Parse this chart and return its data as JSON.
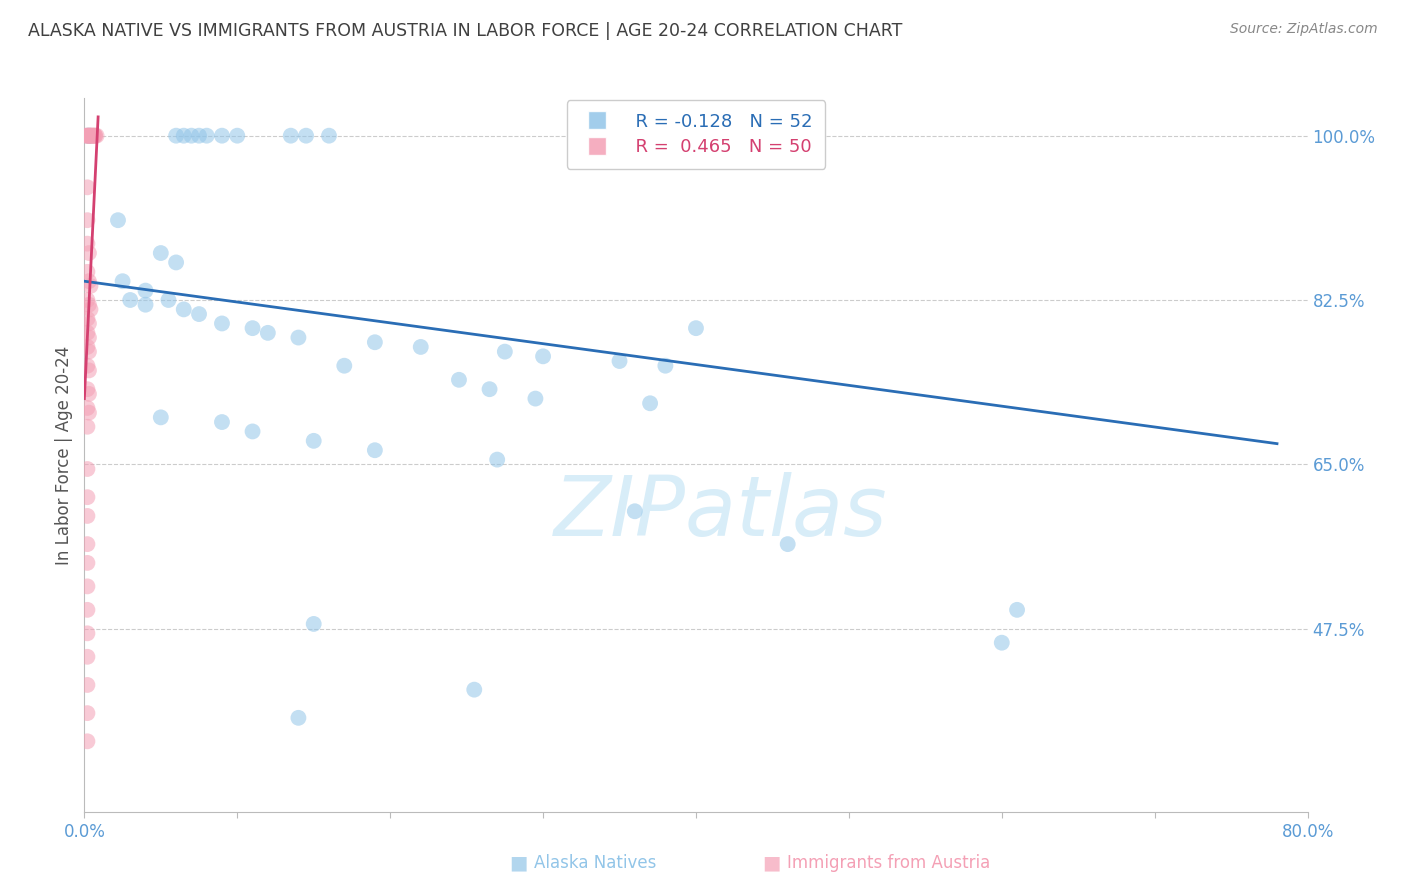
{
  "title": "ALASKA NATIVE VS IMMIGRANTS FROM AUSTRIA IN LABOR FORCE | AGE 20-24 CORRELATION CHART",
  "source": "Source: ZipAtlas.com",
  "ylabel": "In Labor Force | Age 20-24",
  "xmin": 0.0,
  "xmax": 0.8,
  "ymin": 0.28,
  "ymax": 1.04,
  "ytick_vals": [
    0.475,
    0.65,
    0.825,
    1.0
  ],
  "ytick_labels": [
    "47.5%",
    "65.0%",
    "82.5%",
    "100.0%"
  ],
  "xtick_vals": [
    0.0,
    0.1,
    0.2,
    0.3,
    0.4,
    0.5,
    0.6,
    0.7,
    0.8
  ],
  "blue_scatter": [
    [
      0.002,
      1.0
    ],
    [
      0.003,
      1.0
    ],
    [
      0.004,
      1.0
    ],
    [
      0.06,
      1.0
    ],
    [
      0.065,
      1.0
    ],
    [
      0.07,
      1.0
    ],
    [
      0.075,
      1.0
    ],
    [
      0.08,
      1.0
    ],
    [
      0.09,
      1.0
    ],
    [
      0.1,
      1.0
    ],
    [
      0.135,
      1.0
    ],
    [
      0.145,
      1.0
    ],
    [
      0.16,
      1.0
    ],
    [
      0.022,
      0.91
    ],
    [
      0.05,
      0.875
    ],
    [
      0.06,
      0.865
    ],
    [
      0.025,
      0.845
    ],
    [
      0.04,
      0.835
    ],
    [
      0.055,
      0.825
    ],
    [
      0.065,
      0.815
    ],
    [
      0.075,
      0.81
    ],
    [
      0.09,
      0.8
    ],
    [
      0.11,
      0.795
    ],
    [
      0.03,
      0.825
    ],
    [
      0.04,
      0.82
    ],
    [
      0.12,
      0.79
    ],
    [
      0.14,
      0.785
    ],
    [
      0.19,
      0.78
    ],
    [
      0.22,
      0.775
    ],
    [
      0.275,
      0.77
    ],
    [
      0.3,
      0.765
    ],
    [
      0.35,
      0.76
    ],
    [
      0.38,
      0.755
    ],
    [
      0.4,
      0.795
    ],
    [
      0.17,
      0.755
    ],
    [
      0.245,
      0.74
    ],
    [
      0.265,
      0.73
    ],
    [
      0.295,
      0.72
    ],
    [
      0.37,
      0.715
    ],
    [
      0.05,
      0.7
    ],
    [
      0.09,
      0.695
    ],
    [
      0.11,
      0.685
    ],
    [
      0.15,
      0.675
    ],
    [
      0.19,
      0.665
    ],
    [
      0.27,
      0.655
    ],
    [
      0.36,
      0.6
    ],
    [
      0.46,
      0.565
    ],
    [
      0.15,
      0.48
    ],
    [
      0.61,
      0.495
    ],
    [
      0.255,
      0.41
    ],
    [
      0.14,
      0.38
    ],
    [
      0.6,
      0.46
    ]
  ],
  "pink_scatter": [
    [
      0.001,
      1.0
    ],
    [
      0.002,
      1.0
    ],
    [
      0.002,
      1.0
    ],
    [
      0.003,
      1.0
    ],
    [
      0.003,
      1.0
    ],
    [
      0.004,
      1.0
    ],
    [
      0.004,
      1.0
    ],
    [
      0.005,
      1.0
    ],
    [
      0.005,
      1.0
    ],
    [
      0.006,
      1.0
    ],
    [
      0.006,
      1.0
    ],
    [
      0.007,
      1.0
    ],
    [
      0.007,
      1.0
    ],
    [
      0.008,
      1.0
    ],
    [
      0.002,
      0.945
    ],
    [
      0.002,
      0.91
    ],
    [
      0.002,
      0.885
    ],
    [
      0.003,
      0.875
    ],
    [
      0.002,
      0.855
    ],
    [
      0.003,
      0.845
    ],
    [
      0.004,
      0.84
    ],
    [
      0.002,
      0.825
    ],
    [
      0.003,
      0.82
    ],
    [
      0.004,
      0.815
    ],
    [
      0.002,
      0.805
    ],
    [
      0.003,
      0.8
    ],
    [
      0.002,
      0.79
    ],
    [
      0.003,
      0.785
    ],
    [
      0.002,
      0.775
    ],
    [
      0.003,
      0.77
    ],
    [
      0.002,
      0.755
    ],
    [
      0.003,
      0.75
    ],
    [
      0.002,
      0.73
    ],
    [
      0.003,
      0.725
    ],
    [
      0.002,
      0.71
    ],
    [
      0.003,
      0.705
    ],
    [
      0.002,
      0.69
    ],
    [
      0.002,
      0.645
    ],
    [
      0.002,
      0.615
    ],
    [
      0.002,
      0.595
    ],
    [
      0.002,
      0.565
    ],
    [
      0.002,
      0.545
    ],
    [
      0.002,
      0.52
    ],
    [
      0.002,
      0.495
    ],
    [
      0.002,
      0.47
    ],
    [
      0.002,
      0.445
    ],
    [
      0.002,
      0.415
    ],
    [
      0.002,
      0.385
    ],
    [
      0.002,
      0.355
    ]
  ],
  "blue_line_x": [
    0.0,
    0.78
  ],
  "blue_line_y": [
    0.845,
    0.672
  ],
  "pink_line_x": [
    0.0,
    0.009
  ],
  "pink_line_y": [
    0.72,
    1.02
  ],
  "blue_dot_color": "#92c5e8",
  "pink_dot_color": "#f4a0b5",
  "blue_line_color": "#2a6db5",
  "pink_line_color": "#d44070",
  "dot_size": 130,
  "dot_alpha": 0.55,
  "grid_color": "#cccccc",
  "axis_color": "#5b9bd5",
  "title_color": "#404040",
  "source_color": "#888888",
  "watermark_text": "ZIPatlas",
  "watermark_color": "#d8edf8",
  "background": "#ffffff"
}
